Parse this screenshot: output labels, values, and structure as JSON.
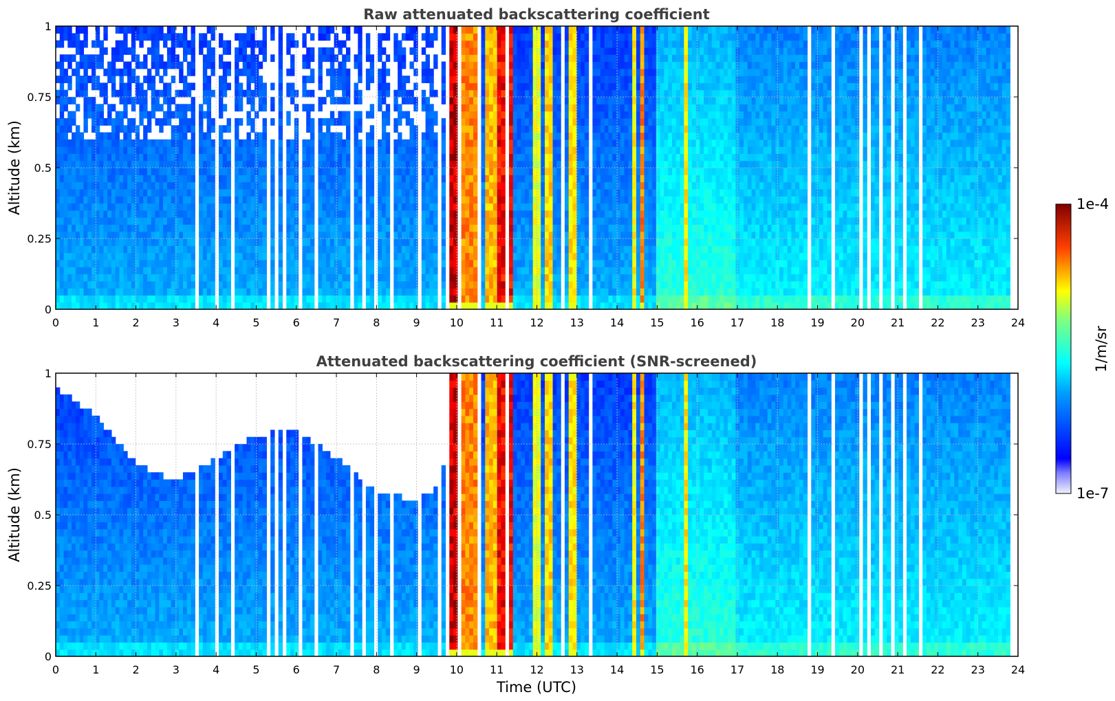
{
  "chart_data": [
    {
      "type": "heatmap",
      "title": "Raw attenuated backscattering coefficient",
      "xlabel": "",
      "ylabel": "Altitude (km)",
      "xlim": [
        0,
        24
      ],
      "ylim": [
        0,
        1
      ],
      "xticks": [
        "0",
        "1",
        "2",
        "3",
        "4",
        "5",
        "6",
        "7",
        "8",
        "9",
        "10",
        "11",
        "12",
        "13",
        "14",
        "15",
        "16",
        "17",
        "18",
        "19",
        "20",
        "21",
        "22",
        "23",
        "24"
      ],
      "yticks": [
        "0",
        "0.25",
        "0.5",
        "0.75",
        "1"
      ],
      "grid": true,
      "data_end_time": 23.8,
      "screened": false,
      "cloud_bands": [
        {
          "start": 9.75,
          "end": 10.1,
          "value": 1.0
        },
        {
          "start": 10.1,
          "end": 10.6,
          "value": 0.8
        },
        {
          "start": 10.7,
          "end": 11.0,
          "value": 0.75
        },
        {
          "start": 11.05,
          "end": 11.4,
          "value": 0.95
        },
        {
          "start": 11.9,
          "end": 12.1,
          "value": 0.65
        },
        {
          "start": 12.2,
          "end": 12.4,
          "value": 0.72
        },
        {
          "start": 12.8,
          "end": 13.0,
          "value": 0.7
        },
        {
          "start": 14.35,
          "end": 14.5,
          "value": 0.68
        },
        {
          "start": 14.55,
          "end": 14.7,
          "value": 0.8
        },
        {
          "start": 15.65,
          "end": 15.75,
          "value": 0.7
        }
      ],
      "gap_times": [
        3.55,
        4.05,
        4.45,
        5.3,
        5.55,
        5.75,
        6.05,
        6.45,
        7.4,
        7.65,
        8.0,
        8.35,
        9.1,
        9.55,
        9.72,
        10.02,
        10.55,
        11.25,
        12.6,
        13.35,
        18.75,
        19.4,
        20.05,
        20.3,
        20.55,
        20.9,
        21.15,
        21.6
      ]
    },
    {
      "type": "heatmap",
      "title": "Attenuated backscattering coefficient (SNR-screened)",
      "xlabel": "Time (UTC)",
      "ylabel": "Altitude (km)",
      "xlim": [
        0,
        24
      ],
      "ylim": [
        0,
        1
      ],
      "xticks": [
        "0",
        "1",
        "2",
        "3",
        "4",
        "5",
        "6",
        "7",
        "8",
        "9",
        "10",
        "11",
        "12",
        "13",
        "14",
        "15",
        "16",
        "17",
        "18",
        "19",
        "20",
        "21",
        "22",
        "23",
        "24"
      ],
      "yticks": [
        "0",
        "0.25",
        "0.5",
        "0.75",
        "1"
      ],
      "grid": true,
      "data_end_time": 23.8,
      "screened": true,
      "screen_ceiling": [
        {
          "t": 0.0,
          "alt": 0.95
        },
        {
          "t": 1.0,
          "alt": 0.85
        },
        {
          "t": 2.0,
          "alt": 0.68
        },
        {
          "t": 3.0,
          "alt": 0.62
        },
        {
          "t": 4.0,
          "alt": 0.7
        },
        {
          "t": 5.0,
          "alt": 0.78
        },
        {
          "t": 6.0,
          "alt": 0.8
        },
        {
          "t": 7.0,
          "alt": 0.7
        },
        {
          "t": 8.0,
          "alt": 0.58
        },
        {
          "t": 9.0,
          "alt": 0.55
        },
        {
          "t": 9.6,
          "alt": 0.6
        },
        {
          "t": 10.0,
          "alt": 1.0
        },
        {
          "t": 15.0,
          "alt": 1.0
        },
        {
          "t": 23.8,
          "alt": 1.0
        }
      ],
      "cloud_bands": [
        {
          "start": 9.75,
          "end": 10.1,
          "value": 1.0
        },
        {
          "start": 10.1,
          "end": 10.6,
          "value": 0.8
        },
        {
          "start": 10.7,
          "end": 11.0,
          "value": 0.75
        },
        {
          "start": 11.05,
          "end": 11.4,
          "value": 0.95
        },
        {
          "start": 11.9,
          "end": 12.1,
          "value": 0.65
        },
        {
          "start": 12.2,
          "end": 12.4,
          "value": 0.72
        },
        {
          "start": 12.8,
          "end": 13.0,
          "value": 0.7
        },
        {
          "start": 14.35,
          "end": 14.5,
          "value": 0.68
        },
        {
          "start": 14.55,
          "end": 14.7,
          "value": 0.8
        },
        {
          "start": 15.65,
          "end": 15.75,
          "value": 0.7
        }
      ],
      "gap_times": [
        3.55,
        4.05,
        4.45,
        5.3,
        5.55,
        5.75,
        6.05,
        6.45,
        7.4,
        7.65,
        8.0,
        8.35,
        9.1,
        9.55,
        9.72,
        10.02,
        10.55,
        11.25,
        12.6,
        13.35,
        18.75,
        19.4,
        20.05,
        20.3,
        20.55,
        20.9,
        21.15,
        21.6
      ]
    }
  ],
  "colorbar": {
    "max_label": "1e-4",
    "min_label": "1e-7",
    "unit_label": "1/m/sr",
    "scale": "log",
    "colormap": "jet"
  }
}
